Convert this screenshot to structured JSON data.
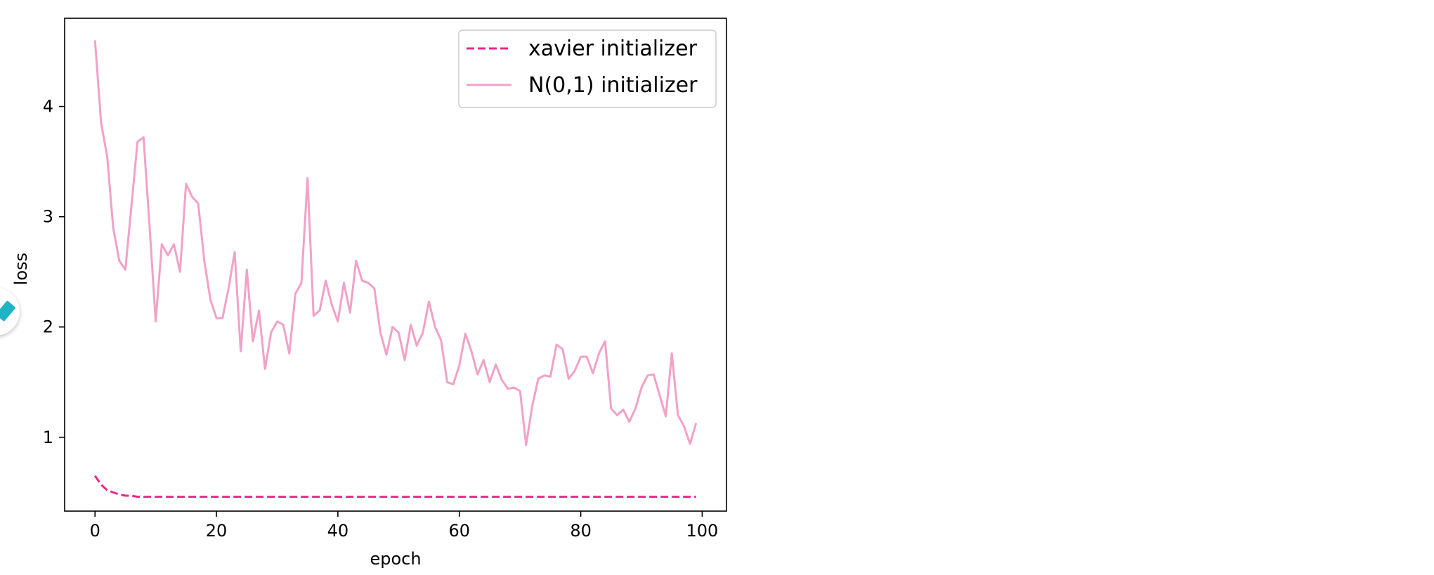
{
  "chart_data": {
    "type": "line",
    "title": "",
    "xlabel": "epoch",
    "ylabel": "loss",
    "xlim": [
      -5,
      104
    ],
    "ylim": [
      0.33,
      4.8
    ],
    "xticks": [
      0,
      20,
      40,
      60,
      80,
      100
    ],
    "yticks": [
      1,
      2,
      3,
      4
    ],
    "x_tick_labels": [
      "0",
      "20",
      "40",
      "60",
      "80",
      "100"
    ],
    "y_tick_labels": [
      "1",
      "2",
      "3",
      "4"
    ],
    "grid": false,
    "legend_position": "top-right",
    "series": [
      {
        "name": "xavier initializer",
        "color": "#e7298a",
        "linestyle": "dashed",
        "values": [
          0.65,
          0.57,
          0.52,
          0.5,
          0.48,
          0.47,
          0.47,
          0.46,
          0.46,
          0.46,
          0.46,
          0.46,
          0.46,
          0.46,
          0.46,
          0.46,
          0.46,
          0.46,
          0.46,
          0.46,
          0.46,
          0.46,
          0.46,
          0.46,
          0.46,
          0.46,
          0.46,
          0.46,
          0.46,
          0.46,
          0.46,
          0.46,
          0.46,
          0.46,
          0.46,
          0.46,
          0.46,
          0.46,
          0.46,
          0.46,
          0.46,
          0.46,
          0.46,
          0.46,
          0.46,
          0.46,
          0.46,
          0.46,
          0.46,
          0.46,
          0.46,
          0.46,
          0.46,
          0.46,
          0.46,
          0.46,
          0.46,
          0.46,
          0.46,
          0.46,
          0.46,
          0.46,
          0.46,
          0.46,
          0.46,
          0.46,
          0.46,
          0.46,
          0.46,
          0.46,
          0.46,
          0.46,
          0.46,
          0.46,
          0.46,
          0.46,
          0.46,
          0.46,
          0.46,
          0.46,
          0.46,
          0.46,
          0.46,
          0.46,
          0.46,
          0.46,
          0.46,
          0.46,
          0.46,
          0.46,
          0.46,
          0.46,
          0.46,
          0.46,
          0.46,
          0.46,
          0.46,
          0.46,
          0.46,
          0.46
        ]
      },
      {
        "name": "N(0,1) initializer",
        "color": "#f2a1c7",
        "linestyle": "solid",
        "values": [
          4.6,
          3.85,
          3.55,
          2.9,
          2.6,
          2.52,
          3.1,
          3.68,
          3.72,
          2.9,
          2.05,
          2.75,
          2.65,
          2.75,
          2.5,
          3.3,
          3.18,
          3.12,
          2.6,
          2.25,
          2.08,
          2.08,
          2.35,
          2.68,
          1.78,
          2.52,
          1.87,
          2.15,
          1.62,
          1.95,
          2.05,
          2.02,
          1.76,
          2.3,
          2.4,
          3.35,
          2.1,
          2.15,
          2.42,
          2.2,
          2.05,
          2.4,
          2.13,
          2.6,
          2.42,
          2.4,
          2.35,
          1.95,
          1.75,
          2.0,
          1.95,
          1.7,
          2.02,
          1.83,
          1.95,
          2.23,
          2.0,
          1.88,
          1.5,
          1.48,
          1.65,
          1.94,
          1.78,
          1.57,
          1.7,
          1.5,
          1.66,
          1.52,
          1.44,
          1.45,
          1.42,
          0.93,
          1.28,
          1.53,
          1.56,
          1.55,
          1.84,
          1.8,
          1.53,
          1.6,
          1.73,
          1.73,
          1.58,
          1.76,
          1.87,
          1.26,
          1.2,
          1.25,
          1.14,
          1.26,
          1.45,
          1.56,
          1.57,
          1.38,
          1.19,
          1.76,
          1.2,
          1.1,
          0.94,
          1.13
        ]
      }
    ]
  }
}
